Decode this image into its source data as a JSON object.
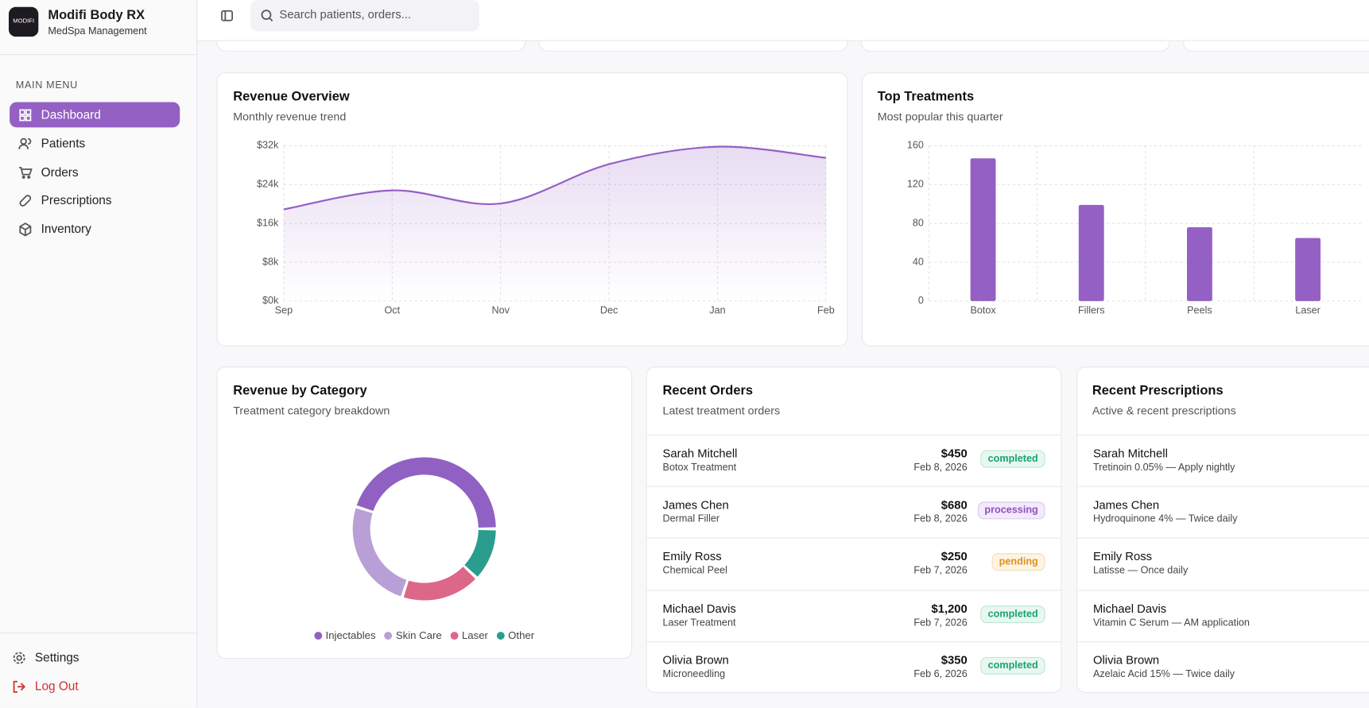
{
  "sidebar": {
    "logo": "MODIFI",
    "title": "Modifi Body RX",
    "subtitle": "MedSpa Management",
    "menu_label": "MAIN MENU",
    "menu": [
      "Dashboard",
      "Patients",
      "Orders",
      "Prescriptions",
      "Inventory"
    ],
    "footer": [
      "Settings",
      "Log Out"
    ]
  },
  "search": {
    "placeholder": "Search patients, orders..."
  },
  "chart_data": [
    {
      "type": "line",
      "title": "Revenue Overview",
      "subtitle": "Monthly revenue trend",
      "categories": [
        "Sep",
        "Oct",
        "Nov",
        "Dec",
        "Jan",
        "Feb"
      ],
      "values": [
        18900,
        22800,
        20100,
        28200,
        31800,
        29500
      ],
      "color": "#9560c4",
      "ylim": [
        0,
        32000
      ],
      "yticks": [
        {
          "value": 0,
          "label": "$0k"
        },
        {
          "value": 8000,
          "label": "$8k"
        },
        {
          "value": 16000,
          "label": "$16k"
        },
        {
          "value": 24000,
          "label": "$24k"
        },
        {
          "value": 32000,
          "label": "$32k"
        }
      ],
      "grid": true
    },
    {
      "type": "bar",
      "title": "Top Treatments",
      "subtitle": "Most popular this quarter",
      "categories": [
        "Botox",
        "Fillers",
        "Peels",
        "Laser"
      ],
      "values": [
        147,
        99,
        76,
        65
      ],
      "color": "#9560c4",
      "ylim": [
        0,
        160
      ],
      "yticks": [
        0,
        40,
        80,
        120,
        160
      ],
      "grid": true
    },
    {
      "type": "pie",
      "title": "Revenue by Category",
      "subtitle": "Treatment category breakdown",
      "categories": [
        "Injectables",
        "Skin Care",
        "Laser",
        "Other"
      ],
      "values": [
        45,
        25,
        18,
        12
      ],
      "colors": [
        "#9061c2",
        "#b89fd6",
        "#dc6788",
        "#2a9d8f"
      ],
      "legend": "bottom"
    }
  ],
  "orders": {
    "title": "Recent Orders",
    "subtitle": "Latest treatment orders",
    "rows": [
      {
        "name": "Sarah Mitchell",
        "item": "Botox Treatment",
        "amount": "$450",
        "date": "Feb 8, 2026",
        "status": "completed"
      },
      {
        "name": "James Chen",
        "item": "Dermal Filler",
        "amount": "$680",
        "date": "Feb 8, 2026",
        "status": "processing"
      },
      {
        "name": "Emily Ross",
        "item": "Chemical Peel",
        "amount": "$250",
        "date": "Feb 7, 2026",
        "status": "pending"
      },
      {
        "name": "Michael Davis",
        "item": "Laser Treatment",
        "amount": "$1,200",
        "date": "Feb 7, 2026",
        "status": "completed"
      },
      {
        "name": "Olivia Brown",
        "item": "Microneedling",
        "amount": "$350",
        "date": "Feb 6, 2026",
        "status": "completed"
      }
    ]
  },
  "prescriptions": {
    "title": "Recent Prescriptions",
    "subtitle": "Active & recent prescriptions",
    "rows": [
      {
        "name": "Sarah Mitchell",
        "detail": "Tretinoin 0.05% — Apply nightly"
      },
      {
        "name": "James Chen",
        "detail": "Hydroquinone 4% — Twice daily"
      },
      {
        "name": "Emily Ross",
        "detail": "Latisse — Once daily"
      },
      {
        "name": "Michael Davis",
        "detail": "Vitamin C Serum — AM application"
      },
      {
        "name": "Olivia Brown",
        "detail": "Azelaic Acid 15% — Twice daily"
      }
    ]
  }
}
